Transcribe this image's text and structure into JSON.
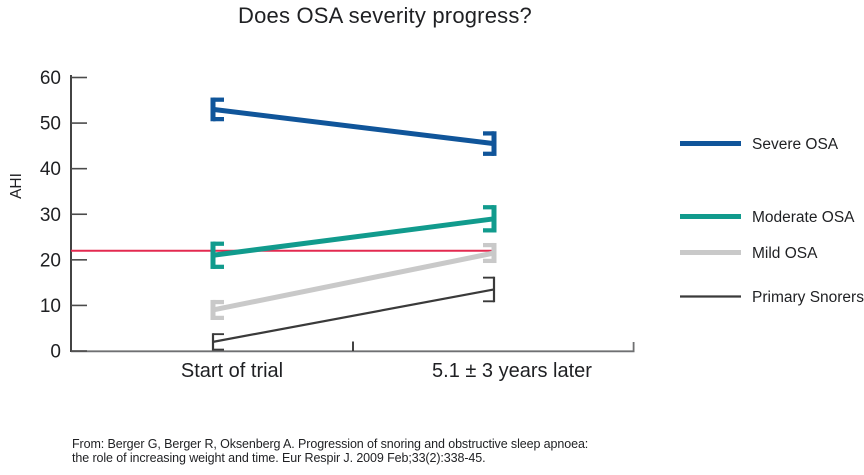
{
  "title": "Does OSA severity progress?",
  "footer": {
    "line1": "From: Berger G, Berger R, Oksenberg A. Progression of snoring and obstructive sleep apnoea:",
    "line2": "the role of increasing weight and time. Eur Respir J. 2009 Feb;33(2):338-45."
  },
  "chart_data": {
    "type": "line",
    "title": "Does OSA severity progress?",
    "xlabel": "",
    "ylabel": "AHI",
    "categories": [
      "Start of trial",
      "5.1 ± 3 years later"
    ],
    "ylim": [
      0,
      60
    ],
    "yticks": [
      0,
      10,
      20,
      30,
      40,
      50,
      60
    ],
    "grid": false,
    "legend_position": "right",
    "series": [
      {
        "name": "Severe OSA",
        "values": [
          53,
          45.5
        ],
        "errors": [
          2.6,
          2.7
        ],
        "color": "#10559A",
        "line_width": 5
      },
      {
        "name": "Moderate OSA",
        "values": [
          21,
          29
        ],
        "errors": [
          3.0,
          3.0
        ],
        "color": "#119B8D",
        "line_width": 5
      },
      {
        "name": "Mild OSA",
        "values": [
          9,
          21.5
        ],
        "errors": [
          2.2,
          2.2
        ],
        "color": "#C9C9C9",
        "line_width": 5
      },
      {
        "name": "Primary Snorers",
        "values": [
          2,
          13.5
        ],
        "errors": [
          1.9,
          2.8
        ],
        "color": "#3A3A3A",
        "line_width": 2.2
      }
    ],
    "reference_line": {
      "value": 22,
      "color": "#E32A50"
    }
  }
}
